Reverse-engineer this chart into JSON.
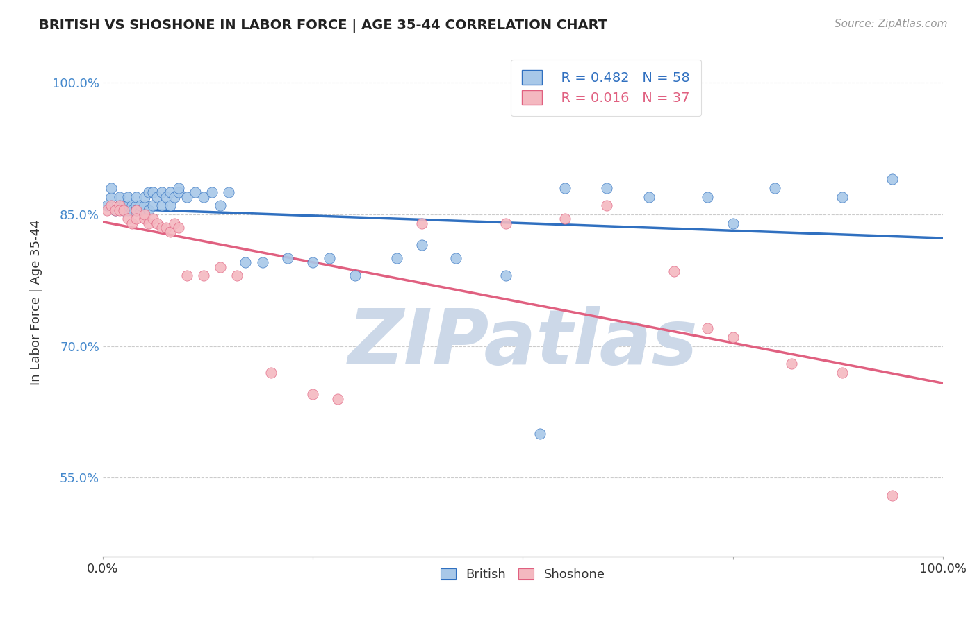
{
  "title": "BRITISH VS SHOSHONE IN LABOR FORCE | AGE 35-44 CORRELATION CHART",
  "source_text": "Source: ZipAtlas.com",
  "ylabel": "In Labor Force | Age 35-44",
  "xlim": [
    0.0,
    1.0
  ],
  "ylim": [
    0.46,
    1.04
  ],
  "yticks": [
    0.55,
    0.7,
    0.85,
    1.0
  ],
  "ytick_labels": [
    "55.0%",
    "70.0%",
    "85.0%",
    "100.0%"
  ],
  "xticks": [
    0.0,
    0.25,
    0.5,
    0.75,
    1.0
  ],
  "xtick_labels": [
    "0.0%",
    "",
    "",
    "",
    "100.0%"
  ],
  "british_R": 0.482,
  "british_N": 58,
  "shoshone_R": 0.016,
  "shoshone_N": 37,
  "british_color": "#a8c8e8",
  "shoshone_color": "#f4b8c0",
  "trendline_british_color": "#3070c0",
  "trendline_shoshone_color": "#e06080",
  "grid_color": "#cccccc",
  "background_color": "#ffffff",
  "watermark_text": "ZIPatlas",
  "watermark_color": "#ccd8e8",
  "british_x": [
    0.005,
    0.01,
    0.01,
    0.015,
    0.02,
    0.02,
    0.025,
    0.025,
    0.03,
    0.03,
    0.03,
    0.035,
    0.035,
    0.04,
    0.04,
    0.04,
    0.045,
    0.045,
    0.05,
    0.05,
    0.055,
    0.055,
    0.06,
    0.06,
    0.065,
    0.07,
    0.07,
    0.075,
    0.08,
    0.08,
    0.085,
    0.09,
    0.09,
    0.1,
    0.11,
    0.12,
    0.13,
    0.14,
    0.15,
    0.17,
    0.19,
    0.22,
    0.25,
    0.27,
    0.3,
    0.35,
    0.38,
    0.42,
    0.48,
    0.52,
    0.55,
    0.6,
    0.65,
    0.72,
    0.75,
    0.8,
    0.88,
    0.94
  ],
  "british_y": [
    0.86,
    0.87,
    0.88,
    0.855,
    0.86,
    0.87,
    0.855,
    0.86,
    0.855,
    0.86,
    0.87,
    0.86,
    0.855,
    0.86,
    0.855,
    0.87,
    0.855,
    0.86,
    0.86,
    0.87,
    0.855,
    0.875,
    0.86,
    0.875,
    0.87,
    0.86,
    0.875,
    0.87,
    0.86,
    0.875,
    0.87,
    0.875,
    0.88,
    0.87,
    0.875,
    0.87,
    0.875,
    0.86,
    0.875,
    0.795,
    0.795,
    0.8,
    0.795,
    0.8,
    0.78,
    0.8,
    0.815,
    0.8,
    0.78,
    0.6,
    0.88,
    0.88,
    0.87,
    0.87,
    0.84,
    0.88,
    0.87,
    0.89
  ],
  "shoshone_x": [
    0.005,
    0.01,
    0.015,
    0.02,
    0.02,
    0.025,
    0.03,
    0.035,
    0.04,
    0.04,
    0.05,
    0.05,
    0.055,
    0.06,
    0.065,
    0.07,
    0.075,
    0.08,
    0.085,
    0.09,
    0.1,
    0.12,
    0.14,
    0.16,
    0.2,
    0.25,
    0.28,
    0.38,
    0.48,
    0.55,
    0.6,
    0.68,
    0.72,
    0.75,
    0.82,
    0.88,
    0.94
  ],
  "shoshone_y": [
    0.855,
    0.86,
    0.855,
    0.86,
    0.855,
    0.855,
    0.845,
    0.84,
    0.855,
    0.845,
    0.845,
    0.85,
    0.84,
    0.845,
    0.84,
    0.835,
    0.835,
    0.83,
    0.84,
    0.835,
    0.78,
    0.78,
    0.79,
    0.78,
    0.67,
    0.645,
    0.64,
    0.84,
    0.84,
    0.845,
    0.86,
    0.785,
    0.72,
    0.71,
    0.68,
    0.67,
    0.53
  ]
}
